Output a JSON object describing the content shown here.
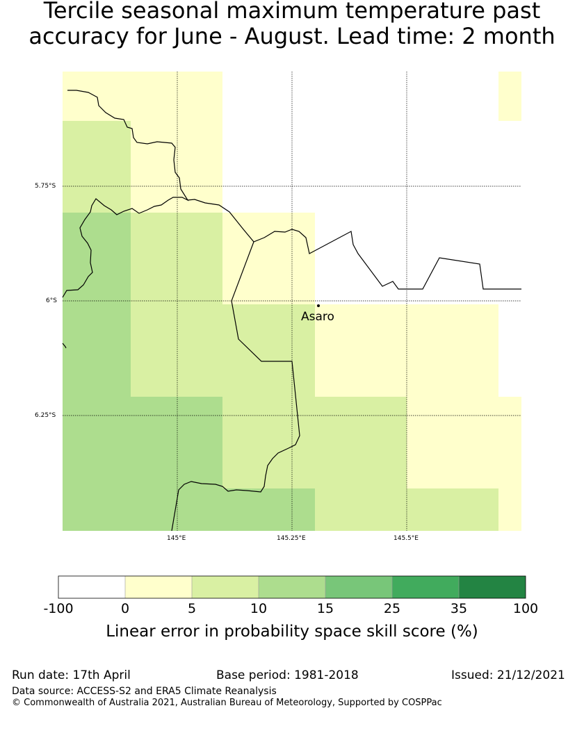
{
  "title": {
    "line1": "Tercile seasonal maximum temperature past",
    "line2": "accuracy for June - August. Lead time: 2 month"
  },
  "map": {
    "lat_labels": [
      "5.75°S",
      "6°S",
      "6.25°S"
    ],
    "lon_labels": [
      "145°E",
      "145.25°E",
      "145.5°E"
    ],
    "place": {
      "name": "Asaro"
    }
  },
  "colorbar": {
    "title": "Linear error in probability space skill score (%)",
    "bounds": [
      "-100",
      "0",
      "5",
      "10",
      "15",
      "25",
      "35",
      "100"
    ],
    "colors": [
      "#ffffff",
      "#ffffcc",
      "#d9f0a3",
      "#addd8e",
      "#78c679",
      "#41ab5d",
      "#238443"
    ]
  },
  "footer": {
    "run_date": "Run date: 17th April",
    "base_period": "Base period: 1981-2018",
    "issued": "Issued: 21/12/2021",
    "data_source": "Data source: ACCESS-S2 and ERA5 Climate Reanalysis",
    "copyright": "© Commonwealth of Australia 2021, Australian Bureau of Meteorology, Supported by COSPPac"
  }
}
